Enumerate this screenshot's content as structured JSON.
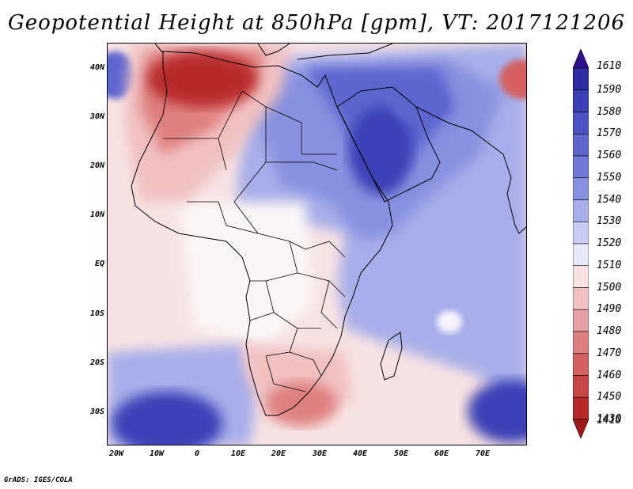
{
  "title": "Geopotential Height at 850hPa [gpm], VT: 2017121206",
  "credit": "GrADS: IGES/COLA",
  "map": {
    "lat_ticks": [
      "40N",
      "30N",
      "20N",
      "10N",
      "EQ",
      "10S",
      "20S",
      "30S"
    ],
    "lon_ticks": [
      "20W",
      "10W",
      "0",
      "10E",
      "20E",
      "30E",
      "40E",
      "50E",
      "60E",
      "70E"
    ],
    "lon_range": [
      -22,
      80
    ],
    "lat_range": [
      -37,
      45
    ]
  },
  "colorbar": {
    "labels": [
      "1610",
      "1590",
      "1580",
      "1570",
      "1560",
      "1550",
      "1540",
      "1530",
      "1520",
      "1510",
      "1500",
      "1490",
      "1480",
      "1470",
      "1460",
      "1450",
      "1430",
      "1410"
    ],
    "colors": [
      "#2b0f8f",
      "#2e2ca3",
      "#3a3fb6",
      "#4b52c4",
      "#5d66cf",
      "#6f79d8",
      "#8791df",
      "#a7aee9",
      "#c8ccf2",
      "#e9eaf9",
      "#f8e2e2",
      "#f1c1c1",
      "#e8a1a1",
      "#df8080",
      "#d46060",
      "#c94444",
      "#b82a2a",
      "#a01515"
    ]
  },
  "fields": {
    "background": "#fbeaea",
    "regions": [
      {
        "name": "high-arabia",
        "color": "#3a3fb6"
      },
      {
        "name": "high-iran",
        "color": "#5d66cf"
      },
      {
        "name": "high-south-atlantic",
        "color": "#2e2ca3"
      },
      {
        "name": "high-indian-ocean-se",
        "color": "#3a3fb6"
      },
      {
        "name": "low-morocco",
        "color": "#b82a2a"
      },
      {
        "name": "low-southern-africa",
        "color": "#df8080"
      },
      {
        "name": "low-himalaya",
        "color": "#d46060"
      }
    ]
  }
}
